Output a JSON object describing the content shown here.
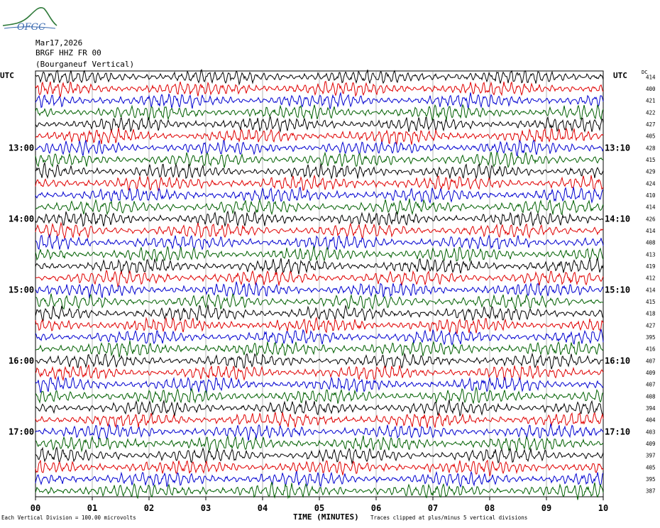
{
  "logo": {
    "text": "OFGC",
    "color": "#2f7a3a"
  },
  "header": {
    "date": "Mar17,2026",
    "station": "BRGF HHZ FR 00",
    "location": "(Bourganeuf Vertical)"
  },
  "utc_left": "UTC",
  "utc_right": "UTC",
  "dc_label": "DC",
  "footer": {
    "scale_note": "Each Vertical Division =  100.00 microvolts",
    "xlabel": "TIME (MINUTES)",
    "clip_note": "Traces clipped at plus/minus 5 vertical divisions"
  },
  "chart_data": {
    "type": "line",
    "title": "",
    "xlabel": "TIME (MINUTES)",
    "ylabel": "",
    "xlim": [
      0,
      10
    ],
    "x_ticks": [
      "00",
      "01",
      "02",
      "03",
      "04",
      "05",
      "06",
      "07",
      "08",
      "09",
      "10"
    ],
    "left_time_labels": [
      "13:00",
      "14:00",
      "15:00",
      "16:00",
      "17:00"
    ],
    "right_time_labels": [
      "13:10",
      "14:10",
      "15:10",
      "16:10",
      "17:10"
    ],
    "time_label_rows": [
      6,
      12,
      18,
      24,
      30
    ],
    "trace_colors": [
      "#000000",
      "#e00000",
      "#0000d0",
      "#006000"
    ],
    "dc_offsets": [
      414,
      400,
      421,
      422,
      427,
      405,
      428,
      415,
      429,
      424,
      410,
      414,
      426,
      414,
      408,
      413,
      419,
      412,
      414,
      415,
      418,
      427,
      395,
      416,
      407,
      409,
      407,
      408,
      394,
      404,
      403,
      409,
      397,
      405,
      395,
      387
    ],
    "grid": true
  }
}
